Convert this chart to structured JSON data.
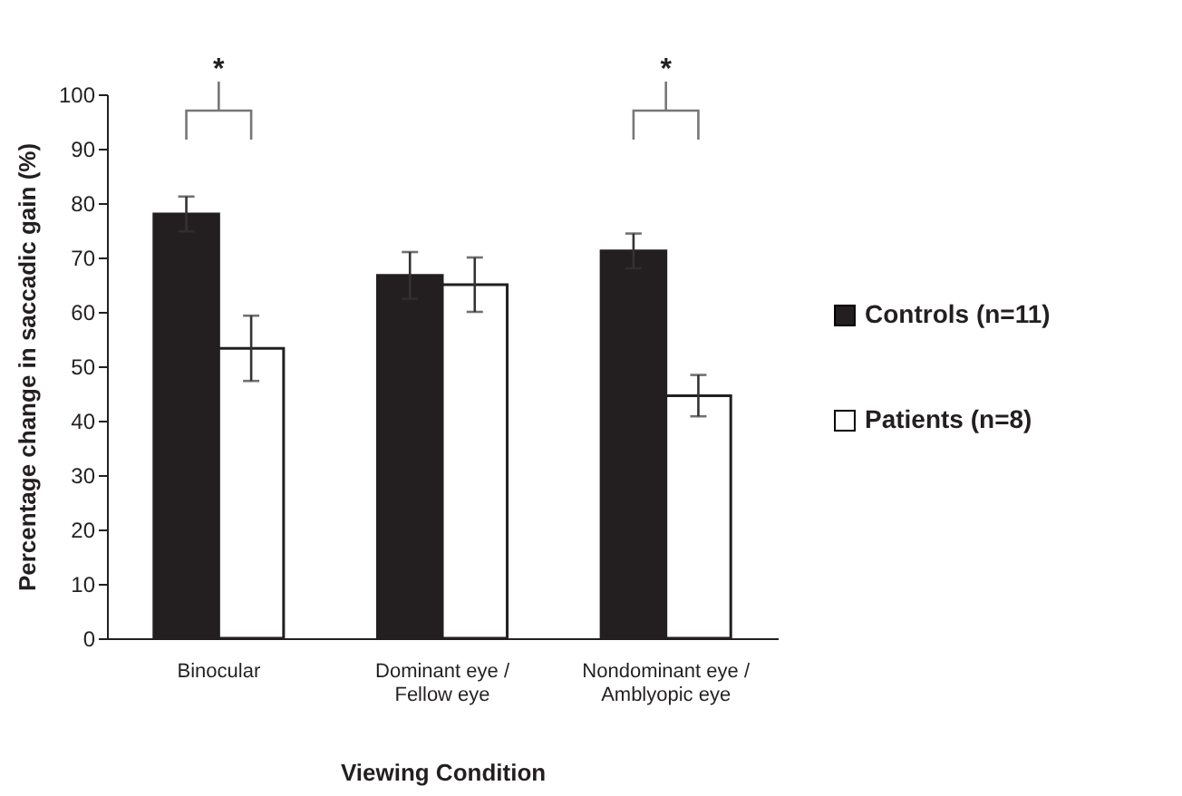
{
  "chart_data": {
    "type": "bar",
    "xlabel": "Viewing Condition",
    "ylabel": "Percentage change in saccadic gain (%)",
    "categories": [
      "Binocular",
      "Dominant eye / Fellow eye",
      "Nondominant eye / Amblyopic eye"
    ],
    "series": [
      {
        "name": "Controls (n=11)",
        "color": "#231f20",
        "values": [
          78,
          66.7,
          71.2
        ],
        "errors": [
          3.2,
          4.3,
          3.2
        ]
      },
      {
        "name": "Patients (n=8)",
        "color": "#ffffff",
        "values": [
          53.3,
          65,
          44.6
        ],
        "errors": [
          6,
          5,
          3.8
        ]
      }
    ],
    "ylim": [
      0,
      100
    ],
    "yticks": [
      0,
      10,
      20,
      30,
      40,
      50,
      60,
      70,
      80,
      90,
      100
    ],
    "annotations": [
      "*",
      "*"
    ],
    "grid": false,
    "legend": "right"
  }
}
